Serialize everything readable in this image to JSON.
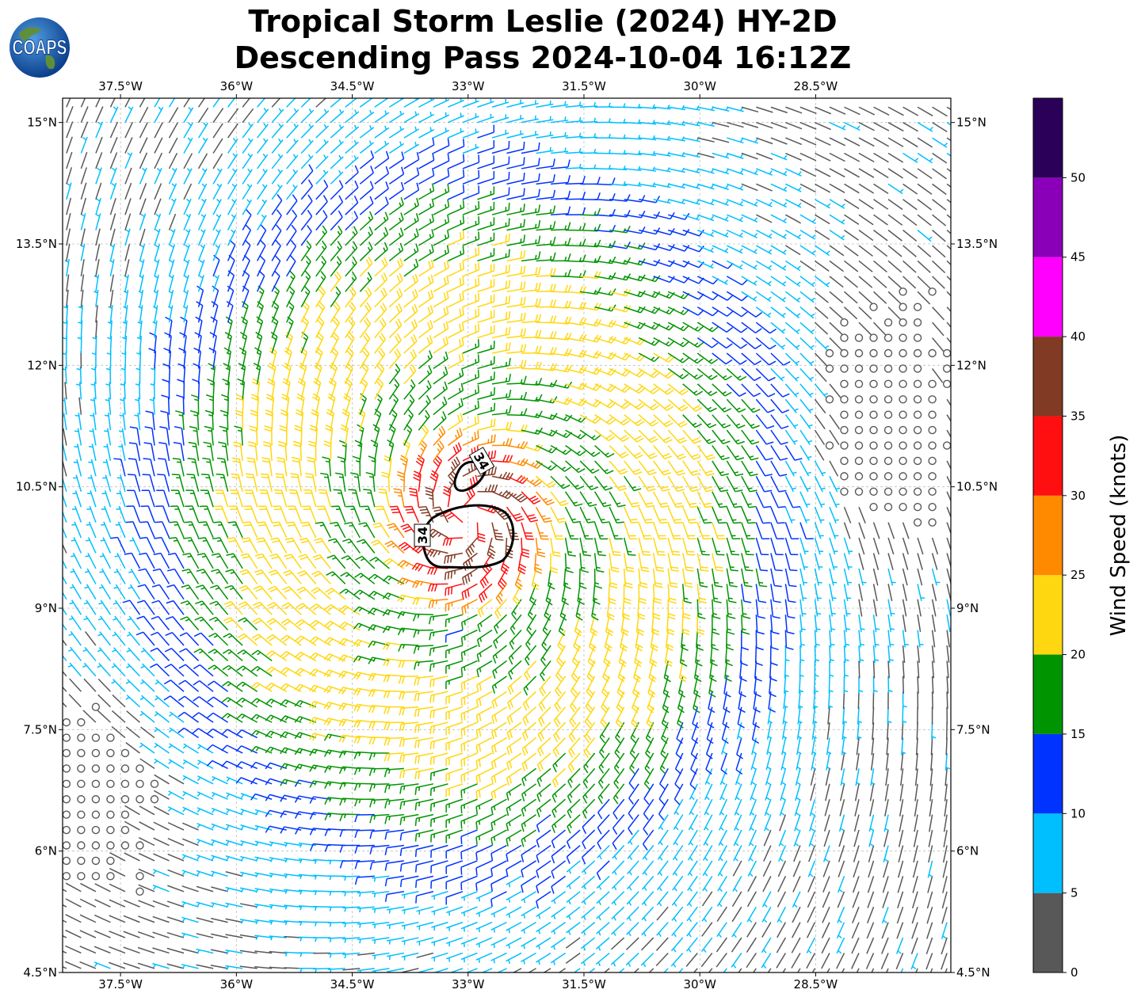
{
  "header": {
    "title_line1": "Tropical Storm Leslie (2024) HY-2D",
    "title_line2": "Descending Pass 2024-10-04 16:12Z"
  },
  "logo": {
    "text": "COAPS",
    "icon": "globe-icon"
  },
  "map": {
    "lon_range": [
      -38.25,
      -26.75
    ],
    "lat_range": [
      4.5,
      15.3
    ],
    "lon_ticks": [
      "37.5°W",
      "36°W",
      "34.5°W",
      "33°W",
      "31.5°W",
      "30°W",
      "28.5°W"
    ],
    "lon_tick_values": [
      -37.5,
      -36,
      -34.5,
      -33,
      -31.5,
      -30,
      -28.5
    ],
    "lat_ticks": [
      "15°N",
      "13.5°N",
      "12°N",
      "10.5°N",
      "9°N",
      "7.5°N",
      "6°N",
      "4.5°N"
    ],
    "lat_tick_values": [
      15,
      13.5,
      12,
      10.5,
      9,
      7.5,
      6,
      4.5
    ],
    "grid": true,
    "storm_center": {
      "lon": -33.0,
      "lat": 10.1
    },
    "contour_label": "34"
  },
  "colorbar": {
    "label": "Wind Speed (knots)",
    "ticks": [
      "0",
      "5",
      "10",
      "15",
      "20",
      "25",
      "30",
      "35",
      "40",
      "45",
      "50"
    ],
    "bins": [
      {
        "min": 0,
        "max": 5,
        "color": "#585858"
      },
      {
        "min": 5,
        "max": 10,
        "color": "#00bfff"
      },
      {
        "min": 10,
        "max": 15,
        "color": "#0033ff"
      },
      {
        "min": 15,
        "max": 20,
        "color": "#009400"
      },
      {
        "min": 20,
        "max": 25,
        "color": "#ffd710"
      },
      {
        "min": 25,
        "max": 30,
        "color": "#ff8a00"
      },
      {
        "min": 30,
        "max": 35,
        "color": "#ff0f0f"
      },
      {
        "min": 35,
        "max": 40,
        "color": "#813a23"
      },
      {
        "min": 40,
        "max": 45,
        "color": "#ff00ff"
      },
      {
        "min": 45,
        "max": 50,
        "color": "#8a00b8"
      },
      {
        "min": 50,
        "max": 55,
        "color": "#2b0059"
      }
    ]
  }
}
